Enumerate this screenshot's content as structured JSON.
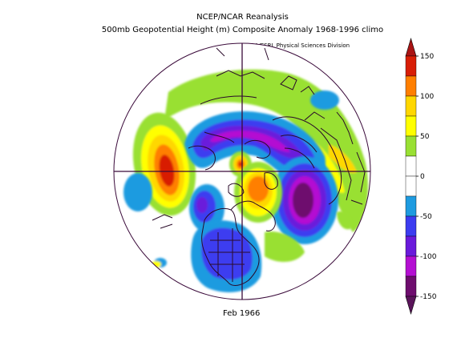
{
  "header": {
    "title_line1": "NCEP/NCAR Reanalysis",
    "title_line2": "500mb Geopotential Height (m) Composite Anomaly 1968-1996 climo",
    "credit": "NOAA/ESRL Physical Sciences Division"
  },
  "footer": {
    "period": "Feb 1966"
  },
  "map": {
    "projection": "north-polar-stereographic",
    "variable": "500mb Geopotential Height Anomaly",
    "units": "m"
  },
  "colorbar": {
    "ticks": [
      {
        "value": 150,
        "label": "150"
      },
      {
        "value": 100,
        "label": "100"
      },
      {
        "value": 50,
        "label": "50"
      },
      {
        "value": 0,
        "label": "0"
      },
      {
        "value": -50,
        "label": "-50"
      },
      {
        "value": -100,
        "label": "-100"
      },
      {
        "value": -150,
        "label": "-150"
      }
    ],
    "bands": [
      {
        "from": 125,
        "to": 150,
        "color": "#d81e06"
      },
      {
        "from": 100,
        "to": 125,
        "color": "#ff7f00"
      },
      {
        "from": 75,
        "to": 100,
        "color": "#ffd700"
      },
      {
        "from": 50,
        "to": 75,
        "color": "#ffff00"
      },
      {
        "from": 25,
        "to": 50,
        "color": "#99e033"
      },
      {
        "from": 0,
        "to": 25,
        "color": "#ffffff"
      },
      {
        "from": -25,
        "to": 0,
        "color": "#ffffff"
      },
      {
        "from": -50,
        "to": -25,
        "color": "#1e9be0"
      },
      {
        "from": -75,
        "to": -50,
        "color": "#3c3cf0"
      },
      {
        "from": -100,
        "to": -75,
        "color": "#6a1adb"
      },
      {
        "from": -125,
        "to": -100,
        "color": "#b40fd2"
      },
      {
        "from": -150,
        "to": -125,
        "color": "#6e0d6e"
      }
    ],
    "extend_top_color": "#aa1414",
    "extend_bottom_color": "#5a145a"
  },
  "colors": {
    "coastline": "#2a0a2a",
    "frame": "#3a0a3a"
  }
}
